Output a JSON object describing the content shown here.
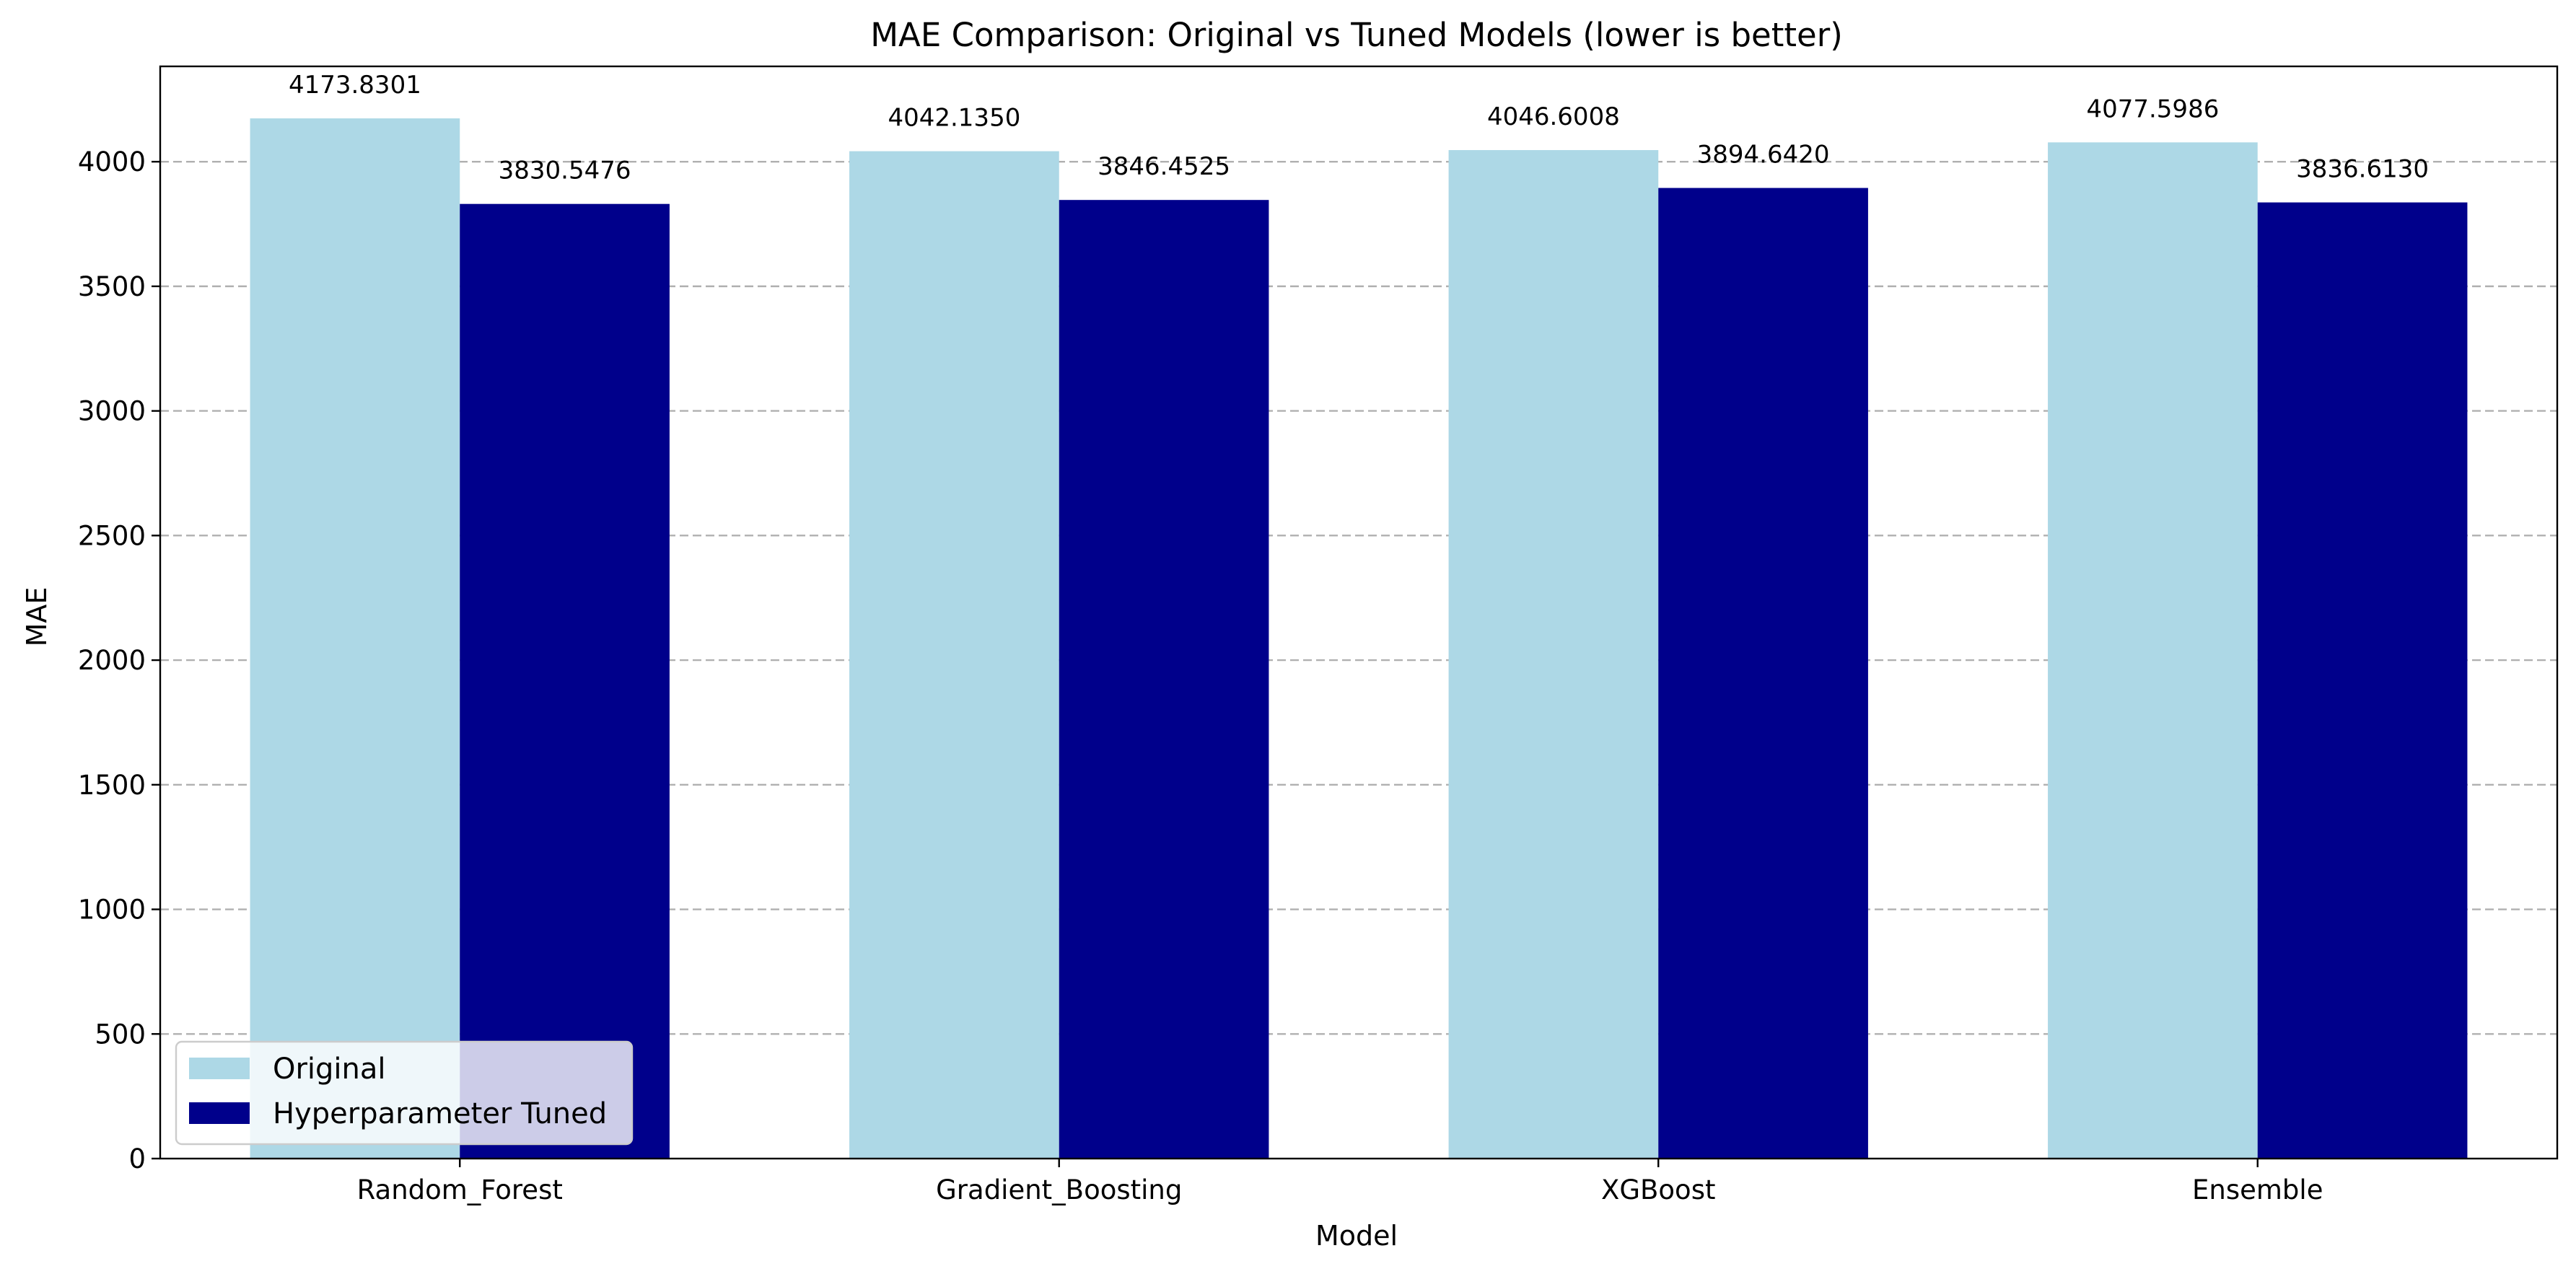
{
  "chart_data": {
    "type": "bar",
    "title": "MAE Comparison: Original vs Tuned Models (lower is better)",
    "xlabel": "Model",
    "ylabel": "MAE",
    "categories": [
      "Random_Forest",
      "Gradient_Boosting",
      "XGBoost",
      "Ensemble"
    ],
    "series": [
      {
        "name": "Original",
        "color": "#add8e6",
        "values": [
          4173.8301,
          4042.135,
          4046.6008,
          4077.5986
        ],
        "labels": [
          "4173.8301",
          "4042.1350",
          "4046.6008",
          "4077.5986"
        ]
      },
      {
        "name": "Hyperparameter Tuned",
        "color": "#00008b",
        "values": [
          3830.5476,
          3846.4525,
          3894.642,
          3836.613
        ],
        "labels": [
          "3830.5476",
          "3846.4525",
          "3894.6420",
          "3836.6130"
        ]
      }
    ],
    "ylim": [
      0,
      4382.52
    ],
    "yticks": [
      0,
      500,
      1000,
      1500,
      2000,
      2500,
      3000,
      3500,
      4000
    ],
    "ytick_labels": [
      "0",
      "500",
      "1000",
      "1500",
      "2000",
      "2500",
      "3000",
      "3500",
      "4000"
    ],
    "grid": "y-dashed",
    "legend_position": "lower-left"
  }
}
